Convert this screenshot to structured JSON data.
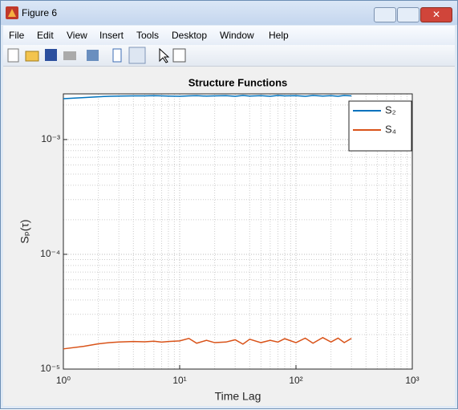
{
  "window": {
    "title": "Figure 6",
    "menu": [
      "File",
      "Edit",
      "View",
      "Insert",
      "Tools",
      "Desktop",
      "Window",
      "Help"
    ]
  },
  "chart_data": {
    "type": "line",
    "title": "Structure Functions",
    "x_label": "Time Lag",
    "y_label": "Sₚ(τ)",
    "x": [
      1,
      1.5,
      2,
      2.5,
      3,
      4,
      5,
      6,
      7,
      8,
      10,
      12,
      14,
      17,
      20,
      25,
      30,
      35,
      40,
      50,
      60,
      70,
      80,
      100,
      120,
      140,
      170,
      200,
      230,
      260,
      300
    ],
    "series": [
      {
        "name": "S₂",
        "color": "#0072bd",
        "values": [
          0.00227,
          0.00232,
          0.00236,
          0.00238,
          0.00239,
          0.0024,
          0.0024,
          0.00241,
          0.0024,
          0.00239,
          0.00238,
          0.0024,
          0.00241,
          0.00239,
          0.0024,
          0.00241,
          0.00238,
          0.00242,
          0.00239,
          0.00241,
          0.00238,
          0.00242,
          0.0024,
          0.00241,
          0.00238,
          0.00242,
          0.00239,
          0.00241,
          0.00238,
          0.00242,
          0.0024
        ]
      },
      {
        "name": "S₄",
        "color": "#d95319",
        "values": [
          1.5e-05,
          1.58e-05,
          1.66e-05,
          1.7e-05,
          1.72e-05,
          1.74e-05,
          1.73e-05,
          1.75e-05,
          1.72e-05,
          1.74e-05,
          1.76e-05,
          1.85e-05,
          1.68e-05,
          1.78e-05,
          1.7e-05,
          1.72e-05,
          1.8e-05,
          1.65e-05,
          1.82e-05,
          1.7e-05,
          1.78e-05,
          1.72e-05,
          1.84e-05,
          1.7e-05,
          1.86e-05,
          1.68e-05,
          1.88e-05,
          1.72e-05,
          1.86e-05,
          1.7e-05,
          1.85e-05
        ]
      }
    ],
    "xlim": [
      1,
      1000
    ],
    "ylim": [
      1e-05,
      0.0025
    ],
    "xticks": [
      {
        "value": 1,
        "label": "10⁰"
      },
      {
        "value": 10,
        "label": "10¹"
      },
      {
        "value": 100,
        "label": "10²"
      },
      {
        "value": 1000,
        "label": "10³"
      }
    ],
    "yticks": [
      {
        "value": 1e-05,
        "label": "10⁻⁵"
      },
      {
        "value": 0.0001,
        "label": "10⁻⁴"
      },
      {
        "value": 0.001,
        "label": "10⁻³"
      }
    ],
    "xscale": "log",
    "yscale": "log",
    "grid": true,
    "minor_grid": true,
    "legend": "top-right"
  }
}
